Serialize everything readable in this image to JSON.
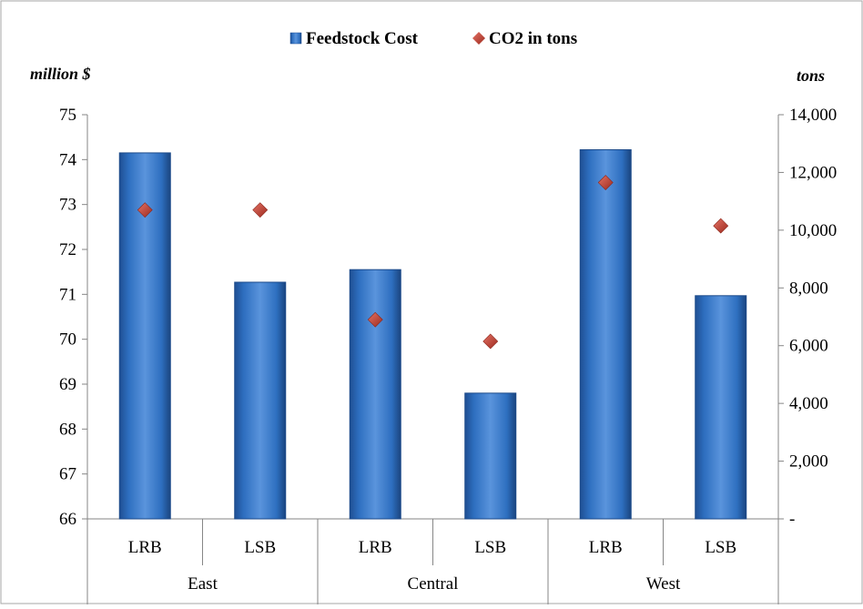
{
  "chart_data": {
    "type": "bar",
    "legend_position": "top",
    "grid": false,
    "groups": [
      "East",
      "Central",
      "West"
    ],
    "categories": [
      "LRB",
      "LSB",
      "LRB",
      "LSB",
      "LRB",
      "LSB"
    ],
    "series": [
      {
        "name": "Feedstock Cost",
        "type": "bar",
        "axis": "left",
        "color": "#2e6fc0",
        "values": [
          74.15,
          71.27,
          71.55,
          68.8,
          74.22,
          70.97
        ]
      },
      {
        "name": "CO2 in tons",
        "type": "scatter",
        "axis": "right",
        "color": "#c0392b",
        "values": [
          10700,
          10700,
          6900,
          6150,
          11650,
          10150
        ]
      }
    ],
    "y_left": {
      "label": "million $",
      "ylim": [
        66,
        75
      ],
      "ticks": [
        "66",
        "67",
        "68",
        "69",
        "70",
        "71",
        "72",
        "73",
        "74",
        "75"
      ]
    },
    "y_right": {
      "label": "tons",
      "ylim": [
        0,
        14000
      ],
      "ticks": [
        "-",
        "2,000",
        "4,000",
        "6,000",
        "8,000",
        "10,000",
        "12,000",
        "14,000"
      ]
    }
  }
}
